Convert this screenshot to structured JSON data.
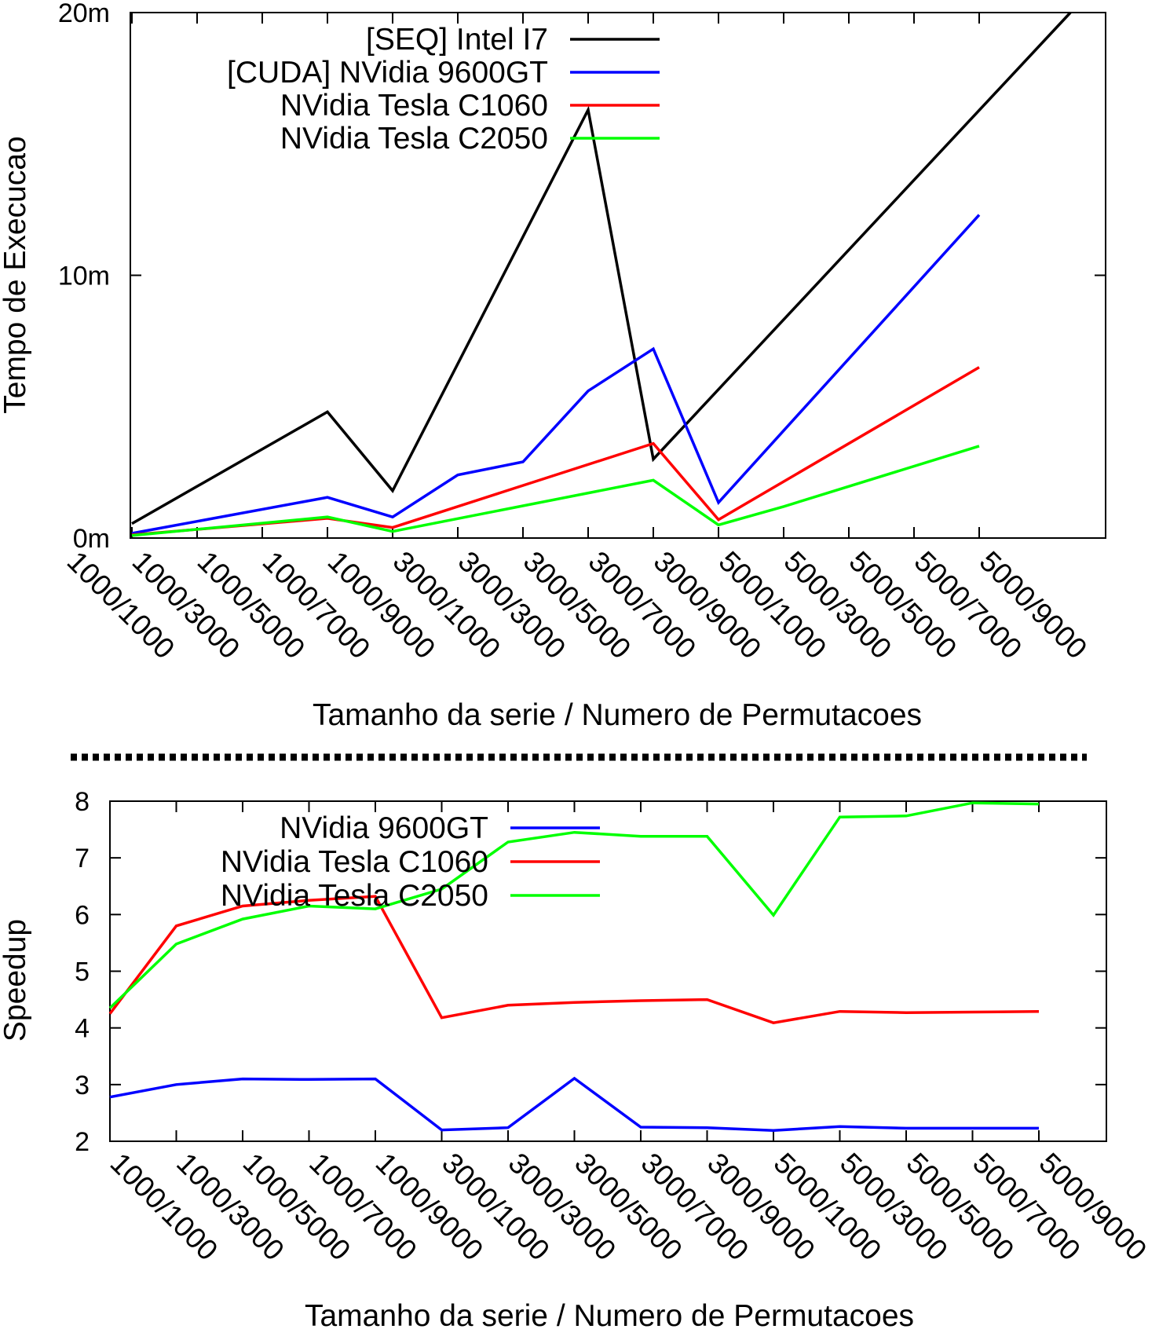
{
  "chart_data": [
    {
      "type": "line",
      "categories": [
        "1000/1000",
        "1000/3000",
        "1000/5000",
        "1000/7000",
        "1000/9000",
        "3000/1000",
        "3000/3000",
        "3000/5000",
        "3000/7000",
        "3000/9000",
        "5000/1000",
        "5000/3000",
        "5000/5000",
        "5000/7000",
        "5000/9000"
      ],
      "xlabel": "Tamanho da serie / Numero de Permutacoes",
      "ylabel": "Tempo de Execucao",
      "yticks": [
        {
          "value": 0,
          "label": "0m"
        },
        {
          "value": 10,
          "label": "10m"
        },
        {
          "value": 20,
          "label": "20m"
        }
      ],
      "ylim": [
        0,
        20
      ],
      "legend_position": "top-left",
      "series": [
        {
          "name": "[SEQ] Intel I7",
          "color": "#000000",
          "values": [
            null,
            0.55,
            null,
            null,
            4.8,
            1.8,
            null,
            null,
            16.3,
            3.0,
            null,
            null,
            null,
            null,
            null
          ],
          "extra": [
            {
              "x": 15.4,
              "y": 20
            }
          ]
        },
        {
          "name": "[CUDA] NVidia 9600GT",
          "color": "#0000ff",
          "values": [
            null,
            0.18,
            null,
            null,
            1.55,
            0.8,
            2.4,
            2.9,
            5.6,
            7.2,
            1.35,
            null,
            null,
            null,
            12.3
          ]
        },
        {
          "name": "NVidia Tesla C1060",
          "color": "#ff0000",
          "values": [
            null,
            0.12,
            null,
            null,
            0.75,
            0.4,
            null,
            null,
            null,
            3.6,
            0.7,
            null,
            null,
            null,
            6.5
          ]
        },
        {
          "name": "NVidia Tesla C2050",
          "color": "#00ff00",
          "values": [
            null,
            0.1,
            null,
            null,
            0.8,
            0.25,
            null,
            null,
            null,
            2.2,
            0.5,
            1.2,
            null,
            null,
            3.5
          ]
        }
      ]
    },
    {
      "type": "line",
      "categories": [
        "1000/1000",
        "1000/3000",
        "1000/5000",
        "1000/7000",
        "1000/9000",
        "3000/1000",
        "3000/3000",
        "3000/5000",
        "3000/7000",
        "3000/9000",
        "5000/1000",
        "5000/3000",
        "5000/5000",
        "5000/7000",
        "5000/9000"
      ],
      "xlabel": "Tamanho da serie / Numero de Permutacoes",
      "ylabel": "Speedup",
      "yticks": [
        {
          "value": 2,
          "label": "2"
        },
        {
          "value": 3,
          "label": "3"
        },
        {
          "value": 4,
          "label": "4"
        },
        {
          "value": 5,
          "label": "5"
        },
        {
          "value": 6,
          "label": "6"
        },
        {
          "value": 7,
          "label": "7"
        },
        {
          "value": 8,
          "label": "8"
        }
      ],
      "ylim": [
        2,
        8
      ],
      "legend_position": "top-center",
      "series": [
        {
          "name": "NVidia 9600GT",
          "color": "#0000ff",
          "values": [
            2.78,
            3.0,
            3.1,
            3.09,
            3.1,
            2.2,
            2.24,
            3.11,
            2.25,
            2.24,
            2.19,
            2.26,
            2.23,
            2.23,
            2.23
          ]
        },
        {
          "name": "NVidia Tesla C1060",
          "color": "#ff0000",
          "values": [
            4.25,
            5.8,
            6.15,
            6.25,
            6.32,
            4.18,
            4.4,
            4.45,
            4.48,
            4.5,
            4.09,
            4.29,
            4.27,
            4.28,
            4.29
          ]
        },
        {
          "name": "NVidia Tesla C2050",
          "color": "#00ff00",
          "values": [
            4.35,
            5.48,
            5.92,
            6.15,
            6.1,
            6.45,
            7.28,
            7.45,
            7.38,
            7.38,
            5.99,
            7.72,
            7.74,
            7.97,
            7.95
          ]
        }
      ]
    }
  ]
}
